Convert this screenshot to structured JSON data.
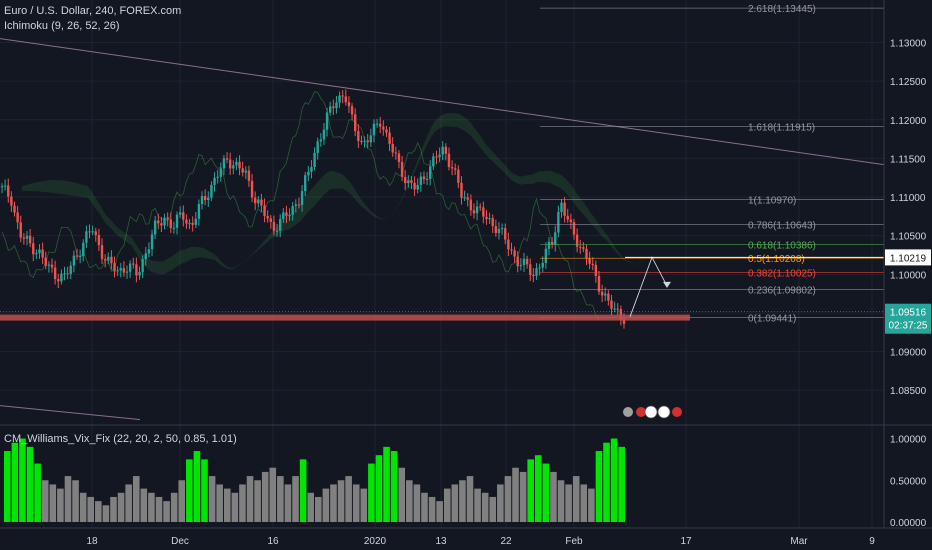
{
  "symbol_title": "Euro / U.S. Dollar, 240, FOREX.com",
  "ichimoku_label": "Ichimoku (9, 26, 52, 26)",
  "vix_label": "CM_Williams_Vix_Fix (22, 20, 2, 50, 0.85, 1.01)",
  "colors": {
    "background": "#131722",
    "grid": "#1f2330",
    "axis_text": "#d1d4dc",
    "up_candle": "#26a69a",
    "down_candle": "#ef5350",
    "vix_high": "#00e600",
    "vix_normal": "#808080",
    "support_zone": "#c0504d",
    "price_tag": "#26a69a",
    "current_line_label": "#ffffff"
  },
  "chart_data": {
    "type": "line",
    "title": "Euro / U.S. Dollar, 240, FOREX.com",
    "x_ticks": [
      "18",
      "Dec",
      "16",
      "2020",
      "13",
      "22",
      "Feb",
      "17",
      "Mar",
      "9"
    ],
    "y_ticks": [
      "1.13000",
      "1.12500",
      "1.12000",
      "1.11500",
      "1.11000",
      "1.10500",
      "1.10000",
      "1.09500",
      "1.09000",
      "1.08500"
    ],
    "ylim": [
      1.0805,
      1.1355
    ],
    "price_path": [
      1.111,
      1.11,
      1.105,
      1.104,
      1.103,
      1.101,
      1.1,
      1.0995,
      1.102,
      1.104,
      1.106,
      1.103,
      1.101,
      1.1005,
      1.101,
      1.1,
      1.103,
      1.106,
      1.1075,
      1.106,
      1.108,
      1.106,
      1.109,
      1.111,
      1.113,
      1.115,
      1.114,
      1.113,
      1.11,
      1.108,
      1.106,
      1.107,
      1.108,
      1.11,
      1.113,
      1.117,
      1.12,
      1.1225,
      1.1235,
      1.119,
      1.117,
      1.118,
      1.12,
      1.117,
      1.114,
      1.112,
      1.111,
      1.113,
      1.115,
      1.116,
      1.114,
      1.11,
      1.109,
      1.108,
      1.107,
      1.106,
      1.104,
      1.102,
      1.101,
      1.1,
      1.102,
      1.104,
      1.1095,
      1.106,
      1.104,
      1.102,
      1.099,
      1.097,
      1.095,
      1.0945
    ],
    "support_level": 1.0944,
    "current_price": "1.09516",
    "current_line_price": "1.10219",
    "countdown": "02:37:25",
    "fibonacci": [
      {
        "label": "2.618(1.13445)",
        "price": 1.13445,
        "color": "#9598a1"
      },
      {
        "label": "1.618(1.11915)",
        "price": 1.11915,
        "color": "#9598a1"
      },
      {
        "label": "1(1.10970)",
        "price": 1.1097,
        "color": "#9598a1"
      },
      {
        "label": "0.786(1.10643)",
        "price": 1.10643,
        "color": "#9598a1"
      },
      {
        "label": "0.618(1.10386)",
        "price": 1.10386,
        "color": "#4caf50"
      },
      {
        "label": "0.5(1.10208)",
        "price": 1.10208,
        "color": "#ff9800"
      },
      {
        "label": "0.382(1.10025)",
        "price": 1.10025,
        "color": "#f44336"
      },
      {
        "label": "0.236(1.09802)",
        "price": 1.09802,
        "color": "#9598a1"
      },
      {
        "label": "0(1.09441)",
        "price": 1.09441,
        "color": "#9598a1"
      }
    ],
    "vix_y_ticks": [
      "1.00000",
      "0.50000",
      "0.00000"
    ],
    "vix_ylim": [
      0,
      1.15
    ],
    "vix_values": [
      0.85,
      0.95,
      1.0,
      0.9,
      0.7,
      0.5,
      0.45,
      0.4,
      0.55,
      0.5,
      0.35,
      0.3,
      0.25,
      0.2,
      0.3,
      0.35,
      0.45,
      0.55,
      0.4,
      0.35,
      0.3,
      0.25,
      0.35,
      0.5,
      0.75,
      0.85,
      0.75,
      0.55,
      0.45,
      0.4,
      0.35,
      0.45,
      0.55,
      0.5,
      0.6,
      0.65,
      0.55,
      0.45,
      0.55,
      0.75,
      0.35,
      0.3,
      0.4,
      0.45,
      0.5,
      0.55,
      0.45,
      0.4,
      0.7,
      0.8,
      0.9,
      0.85,
      0.65,
      0.5,
      0.45,
      0.35,
      0.3,
      0.25,
      0.4,
      0.45,
      0.5,
      0.55,
      0.4,
      0.35,
      0.3,
      0.45,
      0.55,
      0.65,
      0.6,
      0.75,
      0.8,
      0.7,
      0.6,
      0.5,
      0.45,
      0.55,
      0.45,
      0.4,
      0.85,
      0.95,
      1.0,
      0.9
    ],
    "vix_highlight_threshold": 0.7
  }
}
